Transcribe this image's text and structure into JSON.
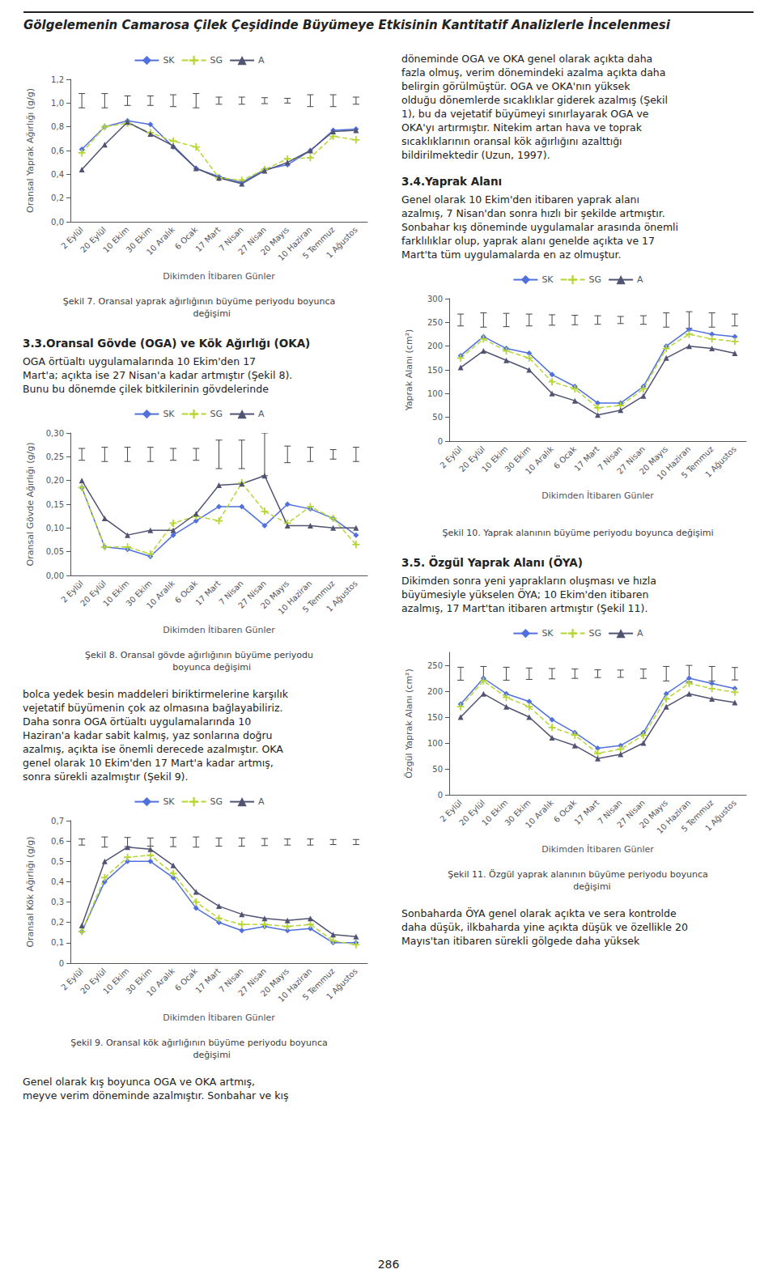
{
  "title": "Gölgelemenin Camarosa Çilek Çeşidinde Büyümeye Etkisinin Kantitatif Analizlerle İncelenmesi",
  "annotations": [
    "döneminde OGA ve OKA genel olarak açıkta daha\nfazla olmuş, verim dönemindeki azalma açıkta daha\nbelirgin görülmüştür. OGA ve OKA'nın yüksek\nolduğu dönemlerde sıcaklıklar giderek azalmış (Şekil\n1), bu da vejetatif büyümeyi sınırlayarak OGA ve\nOKA'yı artırmıştır. Nitekim artan hava ve toprak\nsıcaklıklarının oransal kök ağırlığını azalttığı\nbildirilmektedir (Uzun, 1997).",
    "3.4.Yaprak Alanı",
    "Genel olarak 10 Ekim'den itibaren yaprak alanı\nazalmış, 7 Nisan'dan sonra hızlı bir şekilde artmıştır.\nSonbahar kış döneminde uygulamalar arasında önemli\nfarklılıklar olup, yaprak alanı genelde açıkta ve 17\nMart'ta tüm uygulamalarda en az olmuştur.",
    "3.3.Oransal Gövde (OGA) ve Kök Ağırlığı (OKA)",
    "OGA örtüaltı uygulamalarında 10 Ekim'den 17\nMart'a; açıkta ise 27 Nisan'a kadar artmıştır (Şekil 8).\nBunu bu dönemde çilek bitkilerinin gövdelerinde",
    "bolca yedek besin maddeleri biriktirmelerine karşılık\nvejetatif büyümenin çok az olmasına bağlayabiliriz.\nDaha sonra OGA örtüaltı uygulamalarında 10\nHaziran'a kadar sabit kalmış, yaz sonlarına doğru\nazalmış, açıkta ise önemli derecede azalmıştır. OKA\ngenel olarak 10 Ekim'den 17 Mart'a kadar artmış,\nsonra sürekli azalmıştır (Şekil 9).",
    "3.5. Özgül Yaprak Alanı (ÖYA)",
    "Dikimden sonra yeni yaprakların oluşması ve hızla\nbüyümesiyle yükselen ÖYA; 10 Ekim'den itibaren\nazalmış, 17 Mart'tan itibaren artmıştır (Şekil 11).",
    "Genel olarak kış boyunca OGA ve OKA artmış,\nmeyve verim döneminde azalmıştır. Sonbahar ve kış",
    "Sonbaharda ÖYA genel olarak açıkta ve sera kontrolde\ndaha düşük, ilkbaharda yine açıkta düşük ve özellikle 20\nMayıs'tan itibaren sürekli gölgede daha yüksek",
    "286"
  ],
  "chart_data": [
    {
      "type": "line",
      "title": "Şekil 7. Oransal yaprak ağırlığının büyüme periyodu boyunca\n         değişimi",
      "xlabel": "Dikimden İtibaren Günler",
      "ylabel": "Oransal Yaprak Ağırlığı (g/g)",
      "categories": [
        "2 Eylül",
        "20 Eylül",
        "10 Ekim",
        "30 Ekim",
        "10 Aralık",
        "6 Ocak",
        "17 Mart",
        "7 Nisan",
        "27 Nisan",
        "20 Mayıs",
        "10 Haziran",
        "5 Temmuz",
        "1 Ağustos"
      ],
      "ylim": [
        0.0,
        1.2
      ],
      "yticks": [
        {
          "value": 0.0,
          "label": "0,0"
        },
        {
          "value": 0.2,
          "label": "0,2"
        },
        {
          "value": 0.4,
          "label": "0,4"
        },
        {
          "value": 0.6,
          "label": "0,6"
        },
        {
          "value": 0.8,
          "label": "0,8"
        },
        {
          "value": 1.0,
          "label": "1,0"
        },
        {
          "value": 1.2,
          "label": "1,2"
        }
      ],
      "grid": false,
      "legend": "top",
      "series": [
        {
          "name": "SK",
          "marker": "diamond",
          "line_style": "solid",
          "values": [
            0.61,
            0.8,
            0.85,
            0.82,
            0.63,
            0.45,
            0.38,
            0.33,
            0.44,
            0.48,
            0.6,
            0.77,
            0.78
          ]
        },
        {
          "name": "SG",
          "marker": "plus",
          "line_style": "dashed",
          "values": [
            0.58,
            0.8,
            0.83,
            0.75,
            0.68,
            0.63,
            0.37,
            0.35,
            0.44,
            0.53,
            0.54,
            0.72,
            0.69
          ]
        },
        {
          "name": "A",
          "marker": "triangle",
          "line_style": "solid",
          "values": [
            0.44,
            0.65,
            0.84,
            0.74,
            0.64,
            0.45,
            0.37,
            0.32,
            0.43,
            0.5,
            0.6,
            0.76,
            0.77
          ]
        }
      ],
      "error_bars": [
        0.12,
        0.12,
        0.08,
        0.08,
        0.1,
        0.12,
        0.06,
        0.06,
        0.05,
        0.04,
        0.1,
        0.1,
        0.06
      ]
    },
    {
      "type": "line",
      "title": "Şekil 8. Oransal gövde ağırlığının büyüme periyodu\n         boyunca değişimi",
      "xlabel": "Dikimden İtibaren Günler",
      "ylabel": "Oransal Gövde Ağırlığı (g/g)",
      "categories": [
        "2 Eylül",
        "20 Eylül",
        "10 Ekim",
        "30 Ekim",
        "10 Aralık",
        "6 Ocak",
        "17 Mart",
        "7 Nisan",
        "27 Nisan",
        "20 Mayıs",
        "10 Haziran",
        "5 Temmuz",
        "1 Ağustos"
      ],
      "ylim": [
        0.0,
        0.3
      ],
      "yticks": [
        {
          "value": 0.0,
          "label": "0,00"
        },
        {
          "value": 0.05,
          "label": "0,05"
        },
        {
          "value": 0.1,
          "label": "0,10"
        },
        {
          "value": 0.15,
          "label": "0,15"
        },
        {
          "value": 0.2,
          "label": "0,20"
        },
        {
          "value": 0.25,
          "label": "0,25"
        },
        {
          "value": 0.3,
          "label": "0,30"
        }
      ],
      "grid": false,
      "legend": "top",
      "series": [
        {
          "name": "SK",
          "marker": "diamond",
          "line_style": "solid",
          "values": [
            0.185,
            0.06,
            0.055,
            0.04,
            0.085,
            0.115,
            0.145,
            0.145,
            0.105,
            0.15,
            0.14,
            0.12,
            0.085
          ]
        },
        {
          "name": "SG",
          "marker": "plus",
          "line_style": "dashed",
          "values": [
            0.185,
            0.06,
            0.06,
            0.045,
            0.11,
            0.125,
            0.115,
            0.195,
            0.135,
            0.11,
            0.145,
            0.12,
            0.065
          ]
        },
        {
          "name": "A",
          "marker": "triangle",
          "line_style": "solid",
          "values": [
            0.2,
            0.12,
            0.085,
            0.095,
            0.095,
            0.13,
            0.19,
            0.193,
            0.21,
            0.105,
            0.105,
            0.1,
            0.1
          ]
        }
      ],
      "error_bars": [
        0.025,
        0.03,
        0.03,
        0.03,
        0.025,
        0.025,
        0.06,
        0.06,
        0.09,
        0.035,
        0.03,
        0.02,
        0.03
      ]
    },
    {
      "type": "line",
      "title": "Şekil 9. Oransal kök ağırlığının büyüme periyodu boyunca\n         değişimi",
      "xlabel": "Dikimden İtibaren Günler",
      "ylabel": "Oransal Kök Ağırlığı (g/g)",
      "categories": [
        "2 Eylül",
        "20 Eylül",
        "10 Ekim",
        "30 Ekim",
        "10 Aralık",
        "6 Ocak",
        "17 Mart",
        "7 Nisan",
        "27 Nisan",
        "20 Mayıs",
        "10 Haziran",
        "5 Temmuz",
        "1 Ağustos"
      ],
      "ylim": [
        0,
        0.7
      ],
      "yticks": [
        0,
        {
          "value": 0.1,
          "label": "0,1"
        },
        {
          "value": 0.2,
          "label": "0,2"
        },
        {
          "value": 0.3,
          "label": "0,3"
        },
        {
          "value": 0.4,
          "label": "0,4"
        },
        {
          "value": 0.5,
          "label": "0,5"
        },
        {
          "value": 0.6,
          "label": "0,6"
        },
        {
          "value": 0.7,
          "label": "0,7"
        }
      ],
      "grid": false,
      "legend": "top",
      "series": [
        {
          "name": "SK",
          "marker": "diamond",
          "line_style": "solid",
          "values": [
            0.155,
            0.4,
            0.5,
            0.5,
            0.42,
            0.27,
            0.2,
            0.16,
            0.18,
            0.16,
            0.17,
            0.1,
            0.1
          ]
        },
        {
          "name": "SG",
          "marker": "plus",
          "line_style": "dashed",
          "values": [
            0.155,
            0.42,
            0.52,
            0.53,
            0.44,
            0.3,
            0.22,
            0.19,
            0.19,
            0.18,
            0.19,
            0.11,
            0.09
          ]
        },
        {
          "name": "A",
          "marker": "triangle",
          "line_style": "solid",
          "values": [
            0.185,
            0.5,
            0.57,
            0.56,
            0.48,
            0.35,
            0.28,
            0.24,
            0.22,
            0.21,
            0.22,
            0.14,
            0.13
          ]
        }
      ],
      "error_bars": [
        0.03,
        0.05,
        0.045,
        0.04,
        0.045,
        0.05,
        0.04,
        0.04,
        0.035,
        0.03,
        0.03,
        0.025,
        0.025
      ]
    },
    {
      "type": "line",
      "title": "Şekil 10. Yaprak alanının büyüme periyodu boyunca değişimi",
      "xlabel": "Dikimden İtibaren Günler",
      "ylabel": "Yaprak Alanı (cm²)",
      "categories": [
        "2 Eylül",
        "20 Eylül",
        "10 Ekim",
        "30 Ekim",
        "10 Aralık",
        "6 Ocak",
        "17 Mart",
        "7 Nisan",
        "27 Nisan",
        "20 Mayıs",
        "10 Haziran",
        "5 Temmuz",
        "1 Ağustos"
      ],
      "ylim": [
        0,
        300
      ],
      "yticks": [
        0,
        50,
        100,
        150,
        200,
        250,
        300
      ],
      "grid": false,
      "legend": "top",
      "series": [
        {
          "name": "SK",
          "marker": "diamond",
          "line_style": "solid",
          "values": [
            180,
            220,
            195,
            185,
            140,
            115,
            80,
            80,
            115,
            200,
            235,
            225,
            220
          ]
        },
        {
          "name": "SG",
          "marker": "plus",
          "line_style": "dashed",
          "values": [
            175,
            215,
            190,
            175,
            125,
            110,
            70,
            75,
            110,
            195,
            225,
            215,
            210
          ]
        },
        {
          "name": "A",
          "marker": "triangle",
          "line_style": "solid",
          "values": [
            155,
            190,
            170,
            150,
            100,
            85,
            55,
            65,
            95,
            175,
            200,
            195,
            185
          ]
        }
      ],
      "error_bars": [
        25,
        30,
        28,
        25,
        22,
        20,
        18,
        15,
        18,
        30,
        35,
        30,
        25
      ]
    },
    {
      "type": "line",
      "title": "Şekil 11. Özgül yaprak alanının büyüme periyodu boyunca\n          değişimi",
      "xlabel": "Dikimden İtibaren Günler",
      "ylabel": "Özgül Yaprak Alanı (cm²)",
      "categories": [
        "2 Eylül",
        "20 Eylül",
        "10 Ekim",
        "30 Ekim",
        "10 Aralık",
        "6 Ocak",
        "17 Mart",
        "7 Nisan",
        "27 Nisan",
        "20 Mayıs",
        "10 Haziran",
        "5 Temmuz",
        "1 Ağustos"
      ],
      "ylim": [
        0,
        275
      ],
      "yticks": [
        0,
        50,
        100,
        150,
        200,
        250
      ],
      "grid": false,
      "legend": "top",
      "series": [
        {
          "name": "SK",
          "marker": "diamond",
          "line_style": "solid",
          "values": [
            175,
            225,
            195,
            180,
            145,
            120,
            90,
            95,
            120,
            195,
            225,
            215,
            205
          ]
        },
        {
          "name": "SG",
          "marker": "plus",
          "line_style": "dashed",
          "values": [
            170,
            220,
            188,
            170,
            130,
            115,
            80,
            88,
            115,
            185,
            215,
            205,
            198
          ]
        },
        {
          "name": "A",
          "marker": "triangle",
          "line_style": "solid",
          "values": [
            150,
            195,
            170,
            150,
            110,
            95,
            70,
            78,
            100,
            170,
            195,
            185,
            178
          ]
        }
      ],
      "error_bars": [
        25,
        28,
        25,
        22,
        20,
        18,
        15,
        14,
        18,
        28,
        32,
        28,
        24
      ]
    }
  ]
}
